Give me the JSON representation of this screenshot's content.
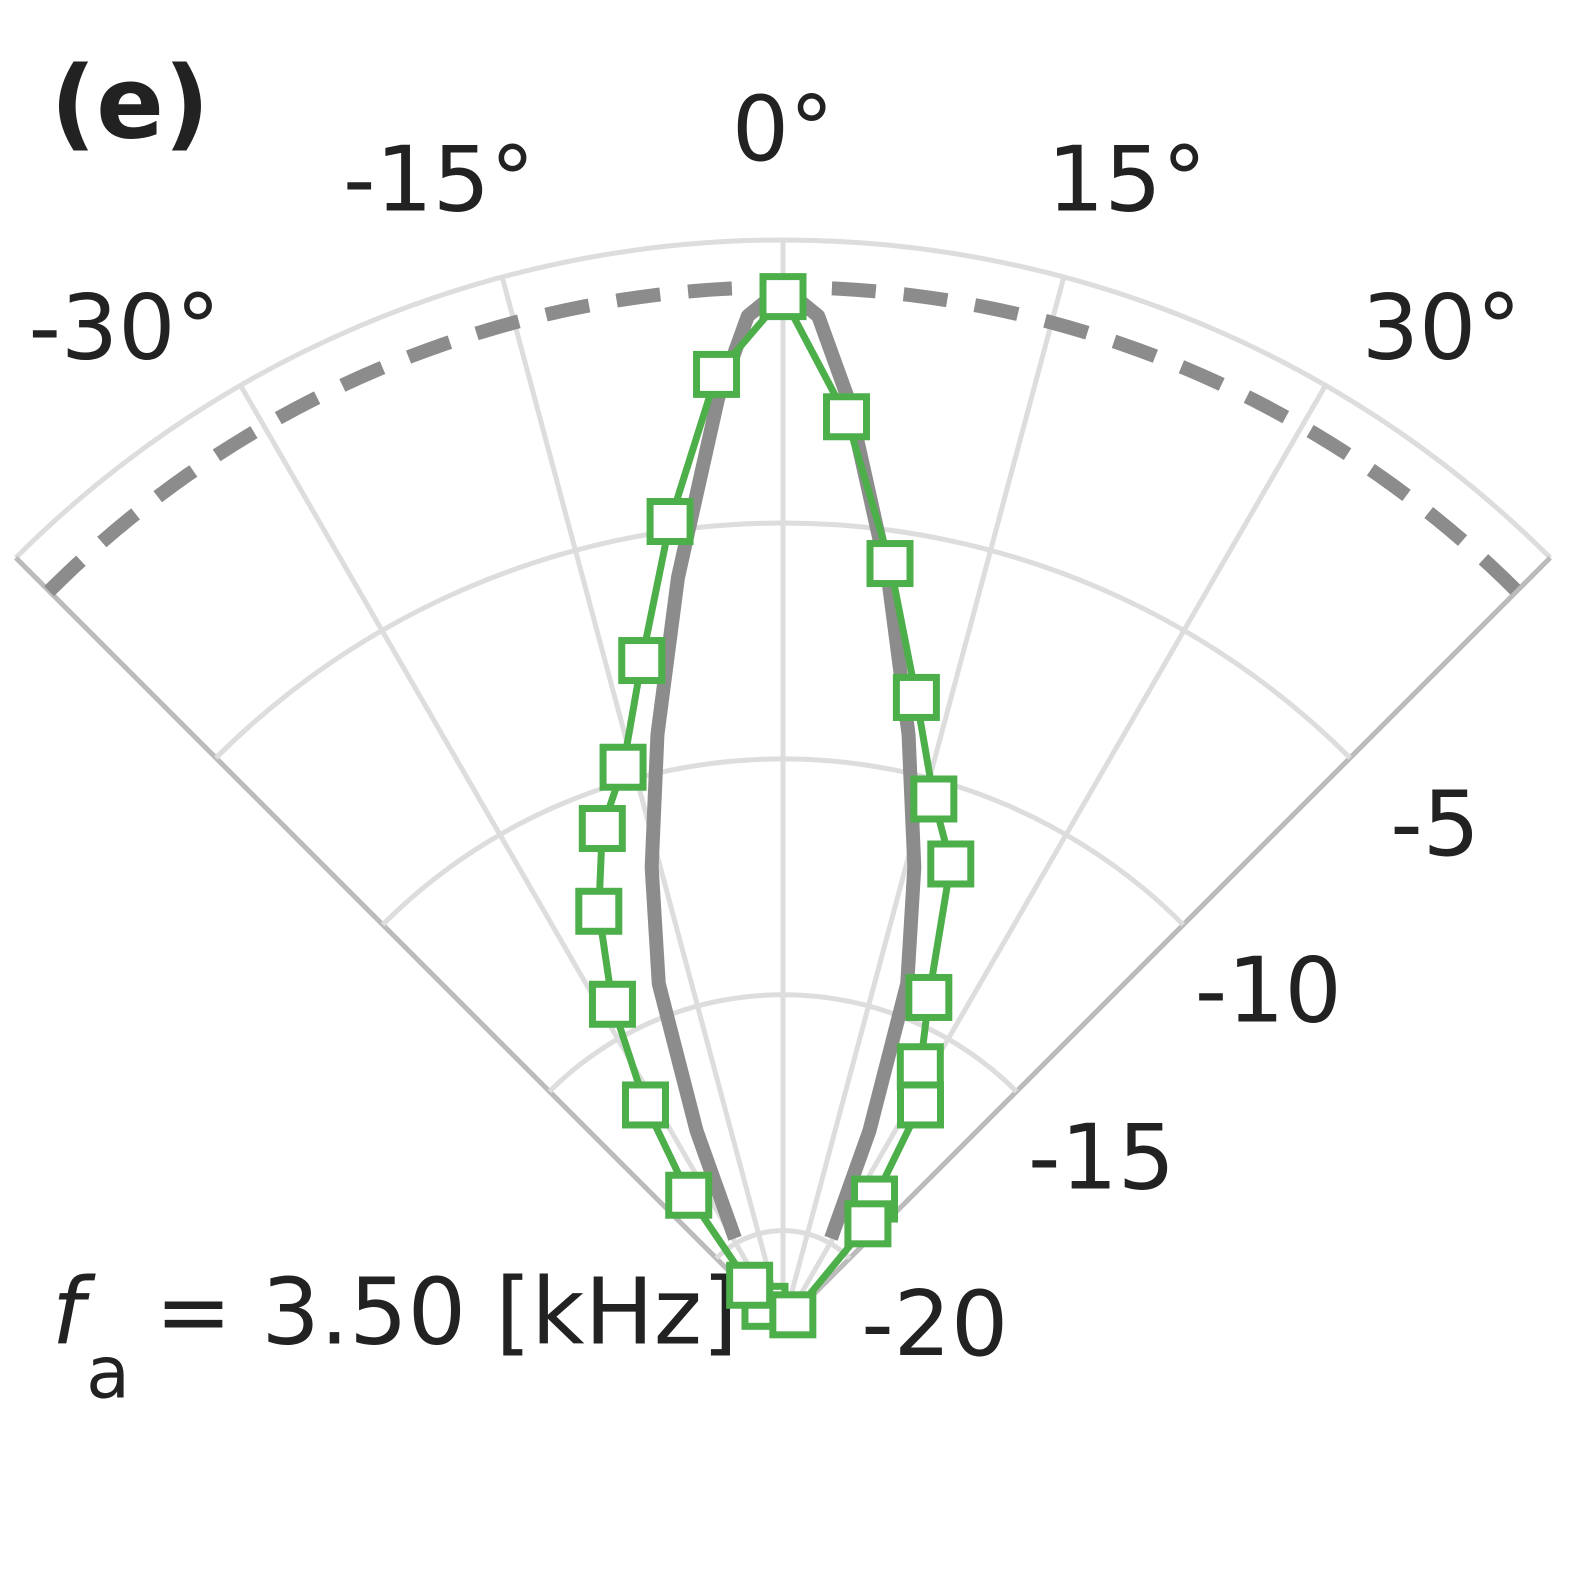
{
  "chart_data": {
    "type": "polar",
    "panel_label": "(e)",
    "thetalim": [
      -45,
      45
    ],
    "rlim": [
      -22,
      1
    ],
    "thetaticks": [
      {
        "value": -30,
        "label": "-30°"
      },
      {
        "value": -15,
        "label": "-15°"
      },
      {
        "value": 0,
        "label": "0°"
      },
      {
        "value": 15,
        "label": "15°"
      },
      {
        "value": 30,
        "label": "30°"
      }
    ],
    "rticks": [
      -20,
      -15,
      -10,
      -5
    ],
    "grid": true,
    "annotation": {
      "symbol": "f",
      "subscript": "a",
      "text": "= 3.50 [kHz]"
    },
    "series": [
      {
        "color": "#8c8c8c",
        "linestyle": "dashed",
        "x": [
          -45,
          45
        ],
        "values": [
          0,
          0
        ]
      },
      {
        "color": "#8c8c8c",
        "linestyle": "solid",
        "x": [
          -29,
          -24,
          -20,
          -16,
          -12,
          -8,
          -4,
          -2,
          0,
          2,
          4,
          8,
          12,
          16,
          20,
          24,
          29
        ],
        "values": [
          -19.9,
          -17.5,
          -14.3,
          -11.9,
          -9.2,
          -6,
          -2.3,
          -0.6,
          0,
          -0.6,
          -2.3,
          -6,
          -9.2,
          -11.9,
          -14.3,
          -17.5,
          -19.9
        ]
      },
      {
        "color": "#4daf4a",
        "linestyle": "solid",
        "marker": "square",
        "x": [
          -44,
          -40,
          -36,
          -32,
          -28,
          -24,
          -20,
          -16,
          -12,
          -8,
          -4,
          0,
          4,
          8,
          12,
          16,
          20,
          24,
          28,
          32,
          36,
          40,
          44
        ],
        "values": [
          -21.45,
          -20.9,
          -18.6,
          -16.5,
          -14.3,
          -12.4,
          -10.8,
          -9.7,
          -7.6,
          -4.8,
          -1.8,
          -0.2,
          -2.7,
          -5.7,
          -8.4,
          -10.4,
          -11.6,
          -14.4,
          -15.8,
          -16.5,
          -18.7,
          -19.2,
          -21.7
        ]
      }
    ]
  }
}
